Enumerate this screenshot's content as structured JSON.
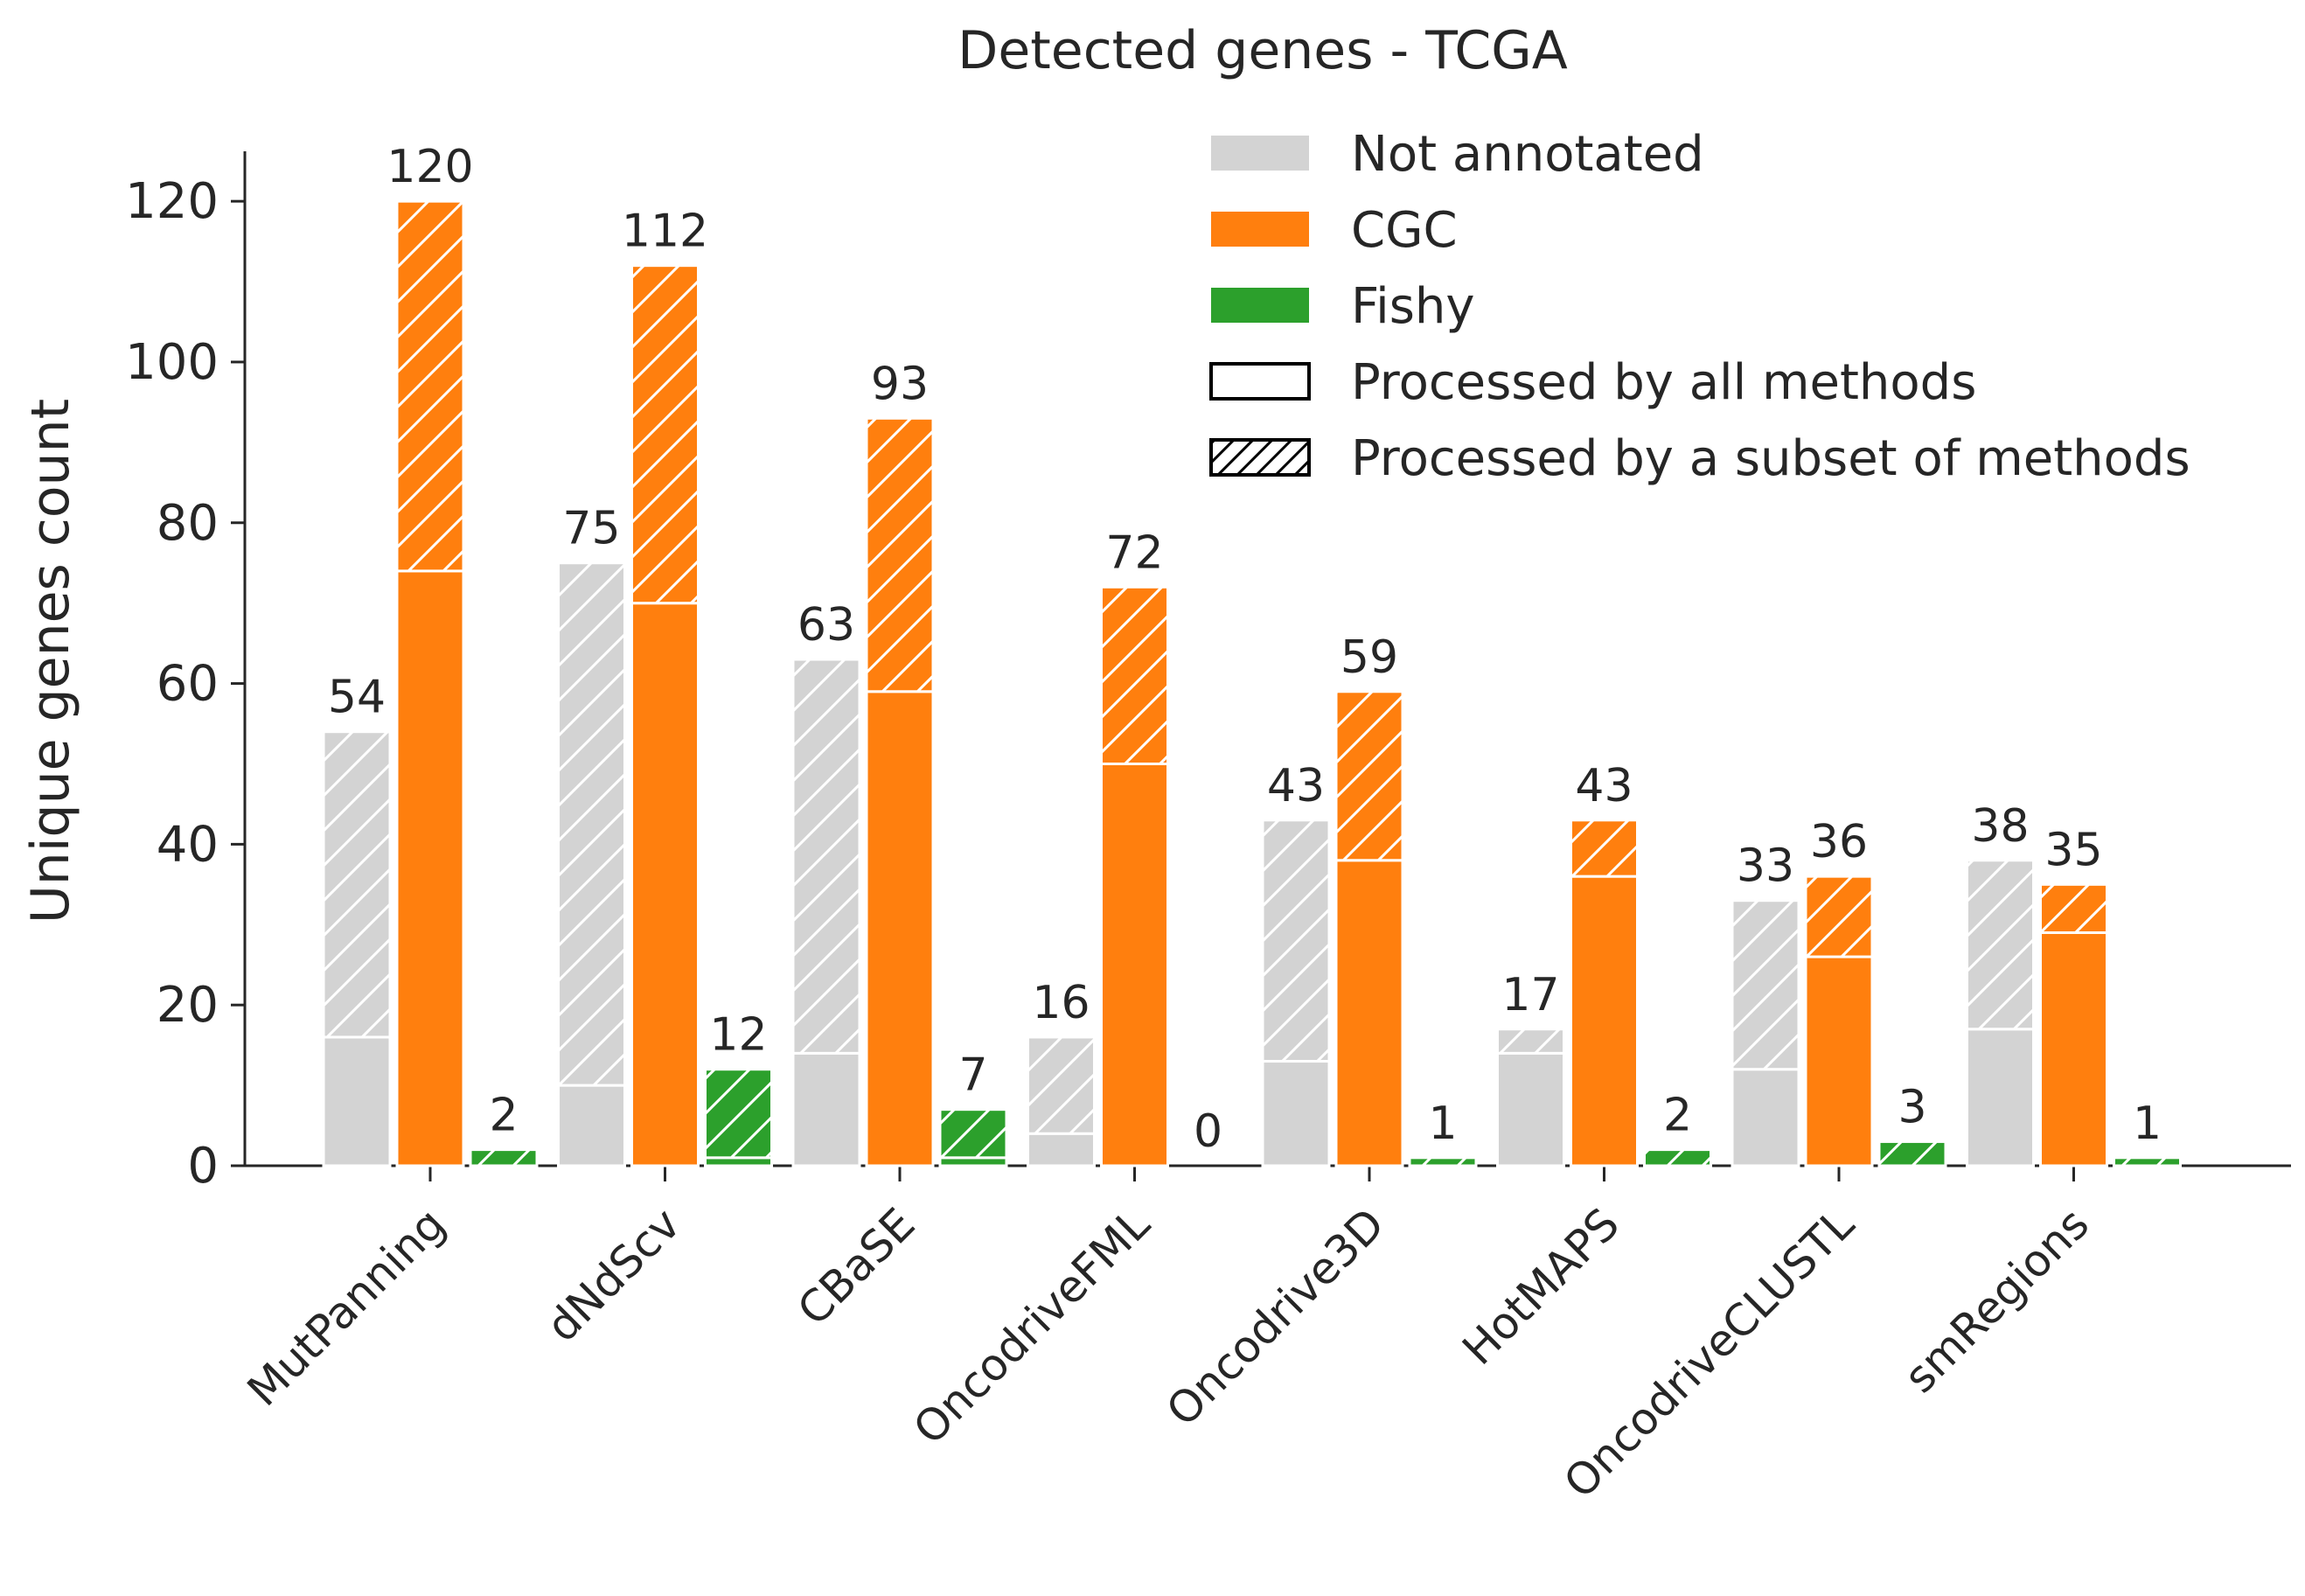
{
  "chart_data": {
    "type": "bar",
    "title": "Detected genes - TCGA",
    "xlabel": "",
    "ylabel": "Unique genes count",
    "ylim": [
      0,
      126
    ],
    "yticks": [
      "0",
      "20",
      "40",
      "60",
      "80",
      "100",
      "120"
    ],
    "grid": false,
    "stacked_within_bar": true,
    "categories": [
      "MutPanning",
      "dNdScv",
      "CBaSE",
      "OncodriveFML",
      "Oncodrive3D",
      "HotMAPS",
      "OncodriveCLUSTL",
      "smRegions"
    ],
    "series": [
      {
        "name": "Not annotated",
        "color": "#d3d3d3",
        "processed_by_all": [
          16,
          10,
          14,
          4,
          13,
          14,
          12,
          17
        ],
        "processed_by_subset": [
          38,
          65,
          49,
          12,
          30,
          3,
          21,
          21
        ],
        "totals": [
          54,
          75,
          63,
          16,
          43,
          17,
          33,
          38
        ],
        "total_labels": [
          "54",
          "75",
          "63",
          "16",
          "43",
          "17",
          "33",
          "38"
        ]
      },
      {
        "name": "CGC",
        "color": "#ff7f0e",
        "processed_by_all": [
          74,
          70,
          59,
          50,
          38,
          36,
          26,
          29
        ],
        "processed_by_subset": [
          46,
          42,
          34,
          22,
          21,
          7,
          10,
          6
        ],
        "totals": [
          120,
          112,
          93,
          72,
          59,
          43,
          36,
          35
        ],
        "total_labels": [
          "120",
          "112",
          "93",
          "72",
          "59",
          "43",
          "36",
          "35"
        ]
      },
      {
        "name": "Fishy",
        "color": "#2ca02c",
        "processed_by_all": [
          0,
          1,
          1,
          0,
          0,
          0,
          0,
          0
        ],
        "processed_by_subset": [
          2,
          11,
          6,
          0,
          1,
          2,
          3,
          1
        ],
        "totals": [
          2,
          12,
          7,
          0,
          1,
          2,
          3,
          1
        ],
        "total_labels": [
          "2",
          "12",
          "7",
          "0",
          "1",
          "2",
          "3",
          "1"
        ]
      }
    ],
    "legend": {
      "placement": "top-right",
      "entries": [
        {
          "label": "Not annotated",
          "color": "#d3d3d3",
          "style": "filled"
        },
        {
          "label": "CGC",
          "color": "#ff7f0e",
          "style": "filled"
        },
        {
          "label": "Fishy",
          "color": "#2ca02c",
          "style": "filled"
        },
        {
          "label": "Processed by all methods",
          "color": "#ffffff",
          "style": "outline"
        },
        {
          "label": "Processed by a subset of methods",
          "color": "#ffffff",
          "style": "hatched"
        }
      ]
    }
  }
}
